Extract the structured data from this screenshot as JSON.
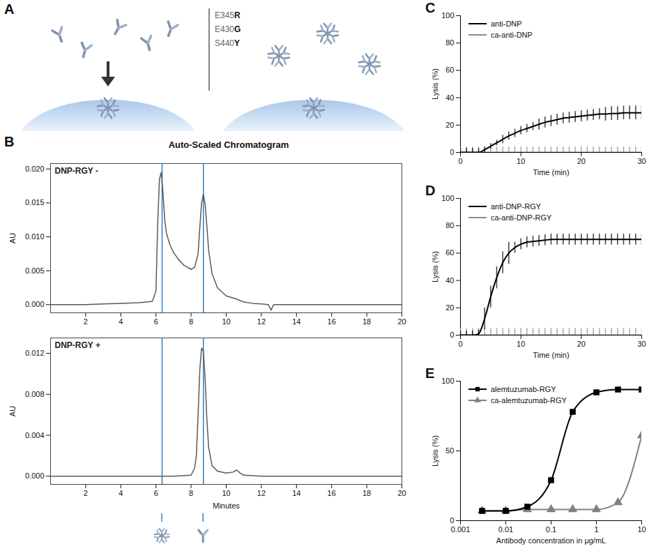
{
  "diagram": {
    "panel": "A",
    "mutations": [
      "E345R",
      "E430G",
      "S440Y"
    ]
  },
  "chart_data": [
    {
      "panel": "B",
      "type": "line",
      "title": "Auto-Scaled Chromatogram",
      "xlabel": "Minutes",
      "xlim": [
        0,
        20
      ],
      "xticks": [
        2,
        4,
        6,
        8,
        10,
        12,
        14,
        16,
        18,
        20
      ],
      "peaks": [
        6.35,
        8.7
      ],
      "color": "#5a5a5a",
      "subplots": [
        {
          "annotation": "DNP-RGY -",
          "ylabel": "AU",
          "ylim": [
            -0.0012,
            0.0208
          ],
          "yticks": [
            {
              "value": 0,
              "label": "0.000"
            },
            {
              "value": 0.005,
              "label": "0.005"
            },
            {
              "value": 0.01,
              "label": "0.010"
            },
            {
              "value": 0.015,
              "label": "0.015"
            },
            {
              "value": 0.02,
              "label": "0.020"
            }
          ],
          "x": [
            0,
            1,
            2,
            3,
            4,
            5,
            5.5,
            5.8,
            6.0,
            6.1,
            6.2,
            6.3,
            6.4,
            6.5,
            6.6,
            6.8,
            7.0,
            7.3,
            7.6,
            8.0,
            8.2,
            8.4,
            8.5,
            8.6,
            8.7,
            8.8,
            8.9,
            9.0,
            9.2,
            9.5,
            10,
            10.5,
            11,
            11.5,
            12,
            12.4,
            12.55,
            12.7,
            13,
            14,
            16,
            18,
            20
          ],
          "values": [
            0,
            0,
            0,
            0.0001,
            0.0002,
            0.0003,
            0.0004,
            0.0005,
            0.002,
            0.012,
            0.0185,
            0.0195,
            0.0165,
            0.0125,
            0.0105,
            0.0088,
            0.0077,
            0.0066,
            0.0058,
            0.0052,
            0.0055,
            0.0075,
            0.0115,
            0.015,
            0.0163,
            0.0148,
            0.0115,
            0.008,
            0.0045,
            0.0025,
            0.0013,
            0.0009,
            0.0004,
            0.0002,
            0.0001,
            0,
            -0.0008,
            0,
            0,
            0,
            0,
            0,
            0
          ]
        },
        {
          "annotation": "DNP-RGY +",
          "ylabel": "AU",
          "ylim": [
            -0.0008,
            0.0135
          ],
          "yticks": [
            {
              "value": 0,
              "label": "0.000"
            },
            {
              "value": 0.004,
              "label": "0.004"
            },
            {
              "value": 0.008,
              "label": "0.008"
            },
            {
              "value": 0.012,
              "label": "0.012"
            }
          ],
          "x": [
            0,
            2,
            4,
            6,
            7,
            8,
            8.2,
            8.3,
            8.4,
            8.5,
            8.6,
            8.7,
            8.8,
            8.9,
            9.0,
            9.2,
            9.5,
            10,
            10.4,
            10.6,
            10.8,
            11,
            12,
            14,
            16,
            18,
            20
          ],
          "values": [
            0,
            0,
            0,
            0,
            0,
            0.0001,
            0.0008,
            0.002,
            0.006,
            0.0105,
            0.0125,
            0.0122,
            0.0095,
            0.0055,
            0.0028,
            0.001,
            0.0005,
            0.0003,
            0.0004,
            0.0006,
            0.0003,
            0.0001,
            0,
            0,
            0,
            0,
            0
          ]
        }
      ]
    },
    {
      "panel": "C",
      "type": "line",
      "xlabel": "Time (min)",
      "ylabel": "Lysis (%)",
      "xlim": [
        0,
        30
      ],
      "xticks": [
        0,
        10,
        20,
        30
      ],
      "ylim": [
        0,
        100
      ],
      "yticks": [
        0,
        20,
        40,
        60,
        80,
        100
      ],
      "legend": "top-left",
      "x": [
        0,
        1,
        2,
        3,
        4,
        5,
        6,
        7,
        8,
        9,
        10,
        11,
        12,
        13,
        14,
        15,
        16,
        17,
        18,
        19,
        20,
        21,
        22,
        23,
        24,
        25,
        26,
        27,
        28,
        29,
        30
      ],
      "series": [
        {
          "name": "anti-DNP",
          "color": "#000000",
          "values": [
            0,
            0,
            0,
            0,
            2,
            4.5,
            7,
            9.5,
            12,
            14,
            16,
            17.5,
            19,
            20.5,
            22,
            23,
            24,
            25,
            25.5,
            26,
            26.5,
            27,
            27.5,
            28,
            28,
            28.5,
            28.5,
            29,
            29,
            29,
            29
          ],
          "errors": [
            3,
            3,
            3,
            3,
            2,
            2,
            2,
            3,
            3,
            3,
            3,
            3,
            3,
            4,
            4,
            4,
            4,
            4,
            4,
            4,
            4,
            4,
            4,
            4,
            5,
            5,
            5,
            5,
            5,
            5,
            5
          ]
        },
        {
          "name": "ca-anti-DNP",
          "color": "#8c8c8c",
          "values": [
            0,
            0,
            0,
            0,
            0,
            0,
            0,
            0,
            0,
            0,
            0,
            0,
            0,
            0,
            0,
            0,
            0,
            0,
            0,
            0,
            0,
            0,
            0,
            0,
            0,
            0,
            0,
            0,
            0,
            0,
            0
          ],
          "errors": [
            4,
            4,
            4,
            4,
            4,
            4,
            4,
            4,
            4,
            4,
            4,
            4,
            4,
            4,
            4,
            4,
            4,
            4,
            4,
            4,
            4,
            4,
            4,
            4,
            4,
            4,
            4,
            4,
            4,
            4,
            4
          ]
        }
      ]
    },
    {
      "panel": "D",
      "type": "line",
      "xlabel": "Time (min)",
      "ylabel": "Lysis (%)",
      "xlim": [
        0,
        30
      ],
      "xticks": [
        0,
        10,
        20,
        30
      ],
      "ylim": [
        0,
        100
      ],
      "yticks": [
        0,
        20,
        40,
        60,
        80,
        100
      ],
      "legend": "top-left",
      "x": [
        0,
        1,
        2,
        3,
        4,
        5,
        6,
        7,
        8,
        9,
        10,
        11,
        12,
        13,
        14,
        15,
        16,
        17,
        18,
        19,
        20,
        21,
        22,
        23,
        24,
        25,
        26,
        27,
        28,
        29,
        30
      ],
      "series": [
        {
          "name": "anti-DNP-RGY",
          "color": "#000000",
          "values": [
            0,
            0,
            0,
            1,
            12,
            28,
            42,
            53,
            60,
            64,
            66.5,
            68,
            68.5,
            69,
            69.5,
            70,
            70,
            70,
            70,
            70,
            70,
            70,
            70,
            70,
            70,
            70,
            70,
            70,
            70,
            70,
            70
          ],
          "errors": [
            3,
            3,
            3,
            3,
            8,
            8,
            8,
            8,
            8,
            4,
            4,
            4,
            4,
            4,
            4,
            4,
            4,
            4,
            4,
            4,
            4,
            4,
            4,
            4,
            4,
            4,
            4,
            4,
            4,
            4,
            4
          ]
        },
        {
          "name": "ca-anti-DNP-RGY",
          "color": "#8c8c8c",
          "values": [
            0,
            0,
            0,
            0,
            0,
            0,
            0,
            0,
            0,
            0,
            0,
            0,
            0,
            0,
            0,
            0,
            0,
            0,
            0,
            0,
            0,
            0,
            0,
            0,
            0,
            0,
            0,
            0,
            0,
            0,
            0
          ],
          "errors": [
            5,
            5,
            5,
            5,
            5,
            5,
            5,
            5,
            5,
            5,
            5,
            5,
            5,
            5,
            5,
            5,
            5,
            5,
            5,
            5,
            5,
            5,
            5,
            5,
            5,
            5,
            5,
            5,
            5,
            5,
            5
          ]
        }
      ]
    },
    {
      "panel": "E",
      "type": "line",
      "xlabel": "Antibody concentration in μg/mL",
      "ylabel": "Lysis (%)",
      "log": "x",
      "xlim": [
        0.001,
        10
      ],
      "xticks": [
        0.001,
        0.01,
        0.1,
        1,
        10
      ],
      "ylim": [
        0,
        100
      ],
      "yticks": [
        0,
        50,
        100
      ],
      "legend": "top-left",
      "x": [
        0.003,
        0.01,
        0.03,
        0.1,
        0.3,
        1,
        3,
        10
      ],
      "series": [
        {
          "name": "alemtuzumab-RGY",
          "color": "#000000",
          "marker": "square",
          "values": [
            7,
            7,
            10,
            29,
            78,
            92,
            94,
            94
          ]
        },
        {
          "name": "ca-alemtuzumab-RGY",
          "color": "#808080",
          "marker": "triangle",
          "values": [
            7,
            7,
            8,
            8,
            8,
            8,
            13,
            61
          ]
        }
      ]
    }
  ]
}
